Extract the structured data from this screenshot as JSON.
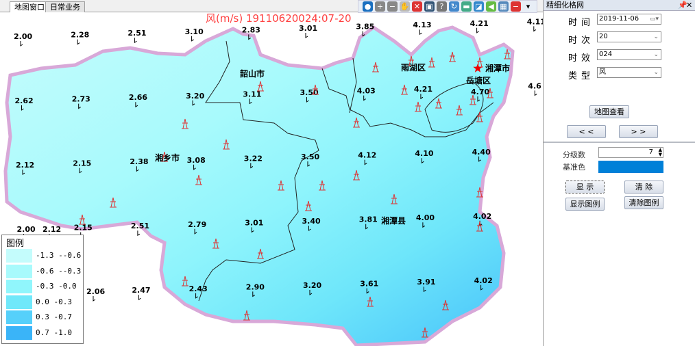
{
  "tabs": [
    {
      "label": "地图窗口",
      "active": true
    },
    {
      "label": "日常业务",
      "active": false
    }
  ],
  "toolbar": {
    "icons": [
      "globe-icon",
      "zoom-in-icon",
      "zoom-out-icon",
      "pan-hand-icon",
      "clear-icon",
      "full-extent-icon",
      "identify-icon",
      "refresh-icon",
      "layer-icon",
      "export-icon",
      "back-arrow-icon",
      "measure-icon",
      "stop-icon",
      "dropdown-icon"
    ]
  },
  "map": {
    "title": "风(m/s) 19110620024:07-20",
    "title_color": "#ff4040",
    "stations": [
      {
        "v": "2.00",
        "r": 0,
        "c": 0
      },
      {
        "v": "2.28",
        "r": 0,
        "c": 1
      },
      {
        "v": "2.51",
        "r": 0,
        "c": 2
      },
      {
        "v": "3.10",
        "r": 0,
        "c": 3
      },
      {
        "v": "2.83",
        "r": 0,
        "c": 4
      },
      {
        "v": "3.01",
        "r": 0,
        "c": 5
      },
      {
        "v": "3.85",
        "r": 0,
        "c": 6
      },
      {
        "v": "4.13",
        "r": 0,
        "c": 7
      },
      {
        "v": "4.21",
        "r": 0,
        "c": 8
      },
      {
        "v": "4.11",
        "r": 0,
        "c": 9
      },
      {
        "v": "2.62",
        "r": 1,
        "c": 0
      },
      {
        "v": "2.73",
        "r": 1,
        "c": 1
      },
      {
        "v": "2.66",
        "r": 1,
        "c": 2
      },
      {
        "v": "3.20",
        "r": 1,
        "c": 3
      },
      {
        "v": "3.11",
        "r": 1,
        "c": 4
      },
      {
        "v": "3.50",
        "r": 1,
        "c": 5
      },
      {
        "v": "4.03",
        "r": 1,
        "c": 6
      },
      {
        "v": "4.21",
        "r": 1,
        "c": 7
      },
      {
        "v": "4.70",
        "r": 1,
        "c": 8
      },
      {
        "v": "4.6",
        "r": 1,
        "c": 9
      },
      {
        "v": "2.12",
        "r": 2,
        "c": 0
      },
      {
        "v": "2.15",
        "r": 2,
        "c": 1
      },
      {
        "v": "2.38",
        "r": 2,
        "c": 2
      },
      {
        "v": "3.08",
        "r": 2,
        "c": 3
      },
      {
        "v": "3.22",
        "r": 2,
        "c": 4
      },
      {
        "v": "3.50",
        "r": 2,
        "c": 5
      },
      {
        "v": "4.12",
        "r": 2,
        "c": 6
      },
      {
        "v": "4.10",
        "r": 2,
        "c": 7
      },
      {
        "v": "4.40",
        "r": 2,
        "c": 8
      },
      {
        "v": "2.00",
        "r": 3,
        "c": 0
      },
      {
        "v": "2.15",
        "r": 3,
        "c": 1
      },
      {
        "v": "2.51",
        "r": 3,
        "c": 2
      },
      {
        "v": "2.79",
        "r": 3,
        "c": 3
      },
      {
        "v": "3.01",
        "r": 3,
        "c": 4
      },
      {
        "v": "3.40",
        "r": 3,
        "c": 5
      },
      {
        "v": "3.81",
        "r": 3,
        "c": 6
      },
      {
        "v": "4.00",
        "r": 3,
        "c": 7
      },
      {
        "v": "4.02",
        "r": 3,
        "c": 8
      },
      {
        "v": "2.12",
        "r": 4,
        "c": 0
      },
      {
        "v": "2.06",
        "r": 4,
        "c": 1
      },
      {
        "v": "2.47",
        "r": 4,
        "c": 2
      },
      {
        "v": "2.43",
        "r": 4,
        "c": 3
      },
      {
        "v": "2.90",
        "r": 4,
        "c": 4
      },
      {
        "v": "3.20",
        "r": 4,
        "c": 5
      },
      {
        "v": "3.61",
        "r": 4,
        "c": 6
      },
      {
        "v": "3.91",
        "r": 4,
        "c": 7
      },
      {
        "v": "4.02",
        "r": 4,
        "c": 8
      }
    ],
    "places": [
      {
        "name": "韶山市",
        "key": "shaoshan"
      },
      {
        "name": "雨湖区",
        "key": "yuhu"
      },
      {
        "name": "湘潭市",
        "key": "xiangtan"
      },
      {
        "name": "岳塘区",
        "key": "yuetang"
      },
      {
        "name": "湘乡市",
        "key": "xiangxiang"
      },
      {
        "name": "湘潭县",
        "key": "xiangtanxian"
      }
    ]
  },
  "legend": {
    "title": "图例",
    "items": [
      {
        "label": "-1.3 --0.6",
        "color": "#c4fcfc"
      },
      {
        "label": "-0.6 --0.3",
        "color": "#a8fafc"
      },
      {
        "label": "-0.3 -0.0",
        "color": "#90f6fc"
      },
      {
        "label": "0.0 -0.3",
        "color": "#70e8fa"
      },
      {
        "label": "0.3 -0.7",
        "color": "#56d0fa"
      },
      {
        "label": "0.7 -1.0",
        "color": "#3ab4f8"
      }
    ]
  },
  "panel": {
    "title": "精细化格网",
    "pin": "📌",
    "close": "✕",
    "fields": [
      {
        "label": "时间",
        "value": "2019-11-06"
      },
      {
        "label": "时次",
        "value": "20"
      },
      {
        "label": "时效",
        "value": "024"
      },
      {
        "label": "类型",
        "value": "风"
      }
    ],
    "map_view": "地图查看",
    "prev": "<  <",
    "next": ">  >",
    "levels_label": "分级数",
    "levels_value": "7",
    "base_color_label": "基准色",
    "base_color": "#0080d8",
    "show": "显  示",
    "clear": "清  除",
    "show_legend": "显示图例",
    "clear_legend": "清除图例"
  }
}
